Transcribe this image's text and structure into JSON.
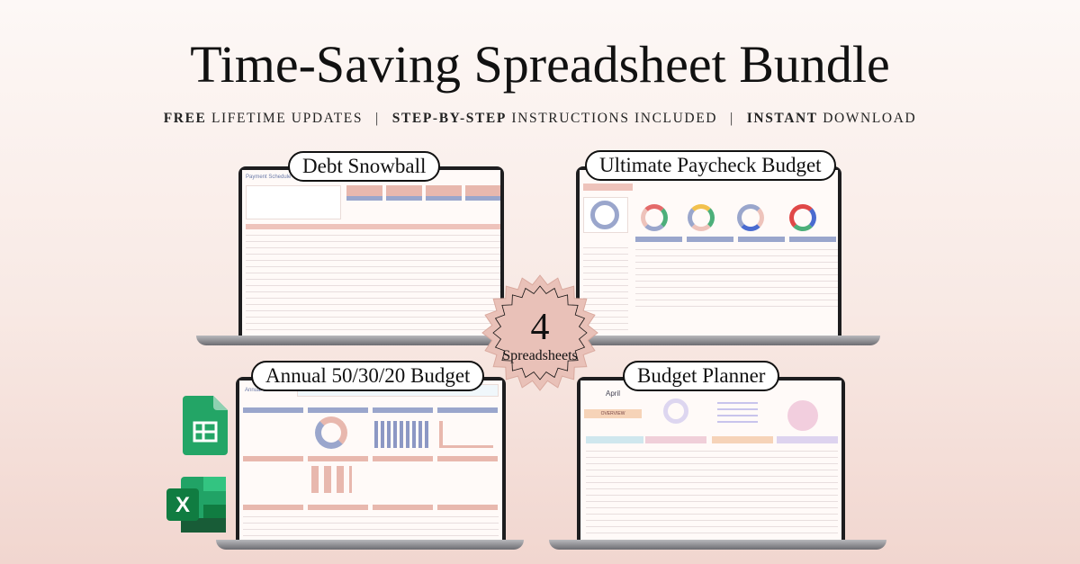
{
  "header": {
    "title": "Time-Saving Spreadsheet Bundle",
    "features": [
      {
        "bold": "FREE",
        "rest": "LIFETIME UPDATES"
      },
      {
        "bold": "STEP-BY-STEP",
        "rest": "INSTRUCTIONS INCLUDED"
      },
      {
        "bold": "INSTANT",
        "rest": "DOWNLOAD"
      }
    ],
    "separator": "|"
  },
  "badge": {
    "count": "4",
    "label": "Spreadsheets",
    "color": "#e9c1b8"
  },
  "products": [
    {
      "name": "Debt Snowball",
      "screen_title": "Payment Schedule"
    },
    {
      "name": "Ultimate Paycheck Budget"
    },
    {
      "name": "Annual 50/30/20 Budget",
      "screen_title": "Annual Dashboard"
    },
    {
      "name": "Budget Planner",
      "screen_title": "April",
      "section": "OVERVIEW"
    }
  ],
  "apps": [
    {
      "icon": "google-sheets-icon",
      "color": "#23a566"
    },
    {
      "icon": "excel-icon",
      "color": "#1e7145"
    }
  ],
  "colors": {
    "accent_pink": "#e8b8ae",
    "accent_blue": "#9aa6cc"
  }
}
